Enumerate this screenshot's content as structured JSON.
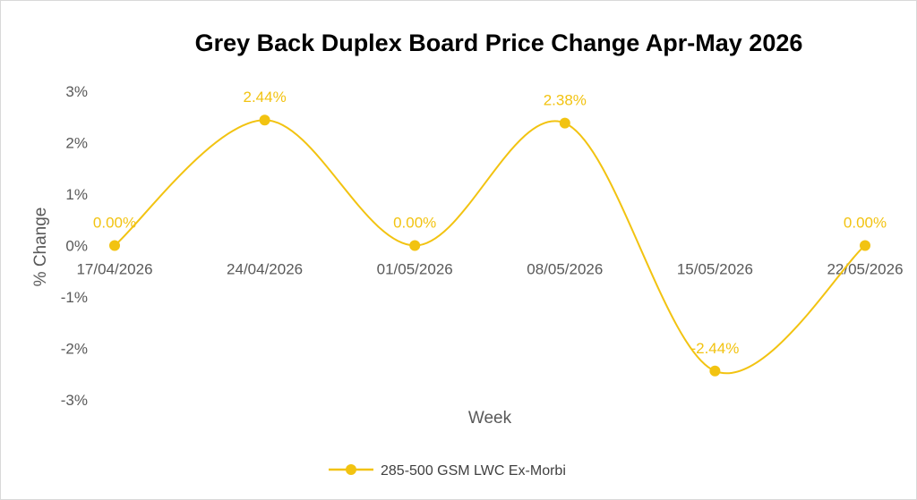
{
  "chart_data": {
    "type": "line",
    "title": "Grey Back Duplex Board Price Change Apr-May 2026",
    "xlabel": "Week",
    "ylabel": "% Change",
    "categories": [
      "17/04/2026",
      "24/04/2026",
      "01/05/2026",
      "08/05/2026",
      "15/05/2026",
      "22/05/2026"
    ],
    "series": [
      {
        "name": "285-500 GSM LWC Ex-Morbi",
        "values": [
          0.0,
          2.44,
          0.0,
          2.38,
          -2.44,
          0.0
        ],
        "labels": [
          "0.00%",
          "2.44%",
          "0.00%",
          "2.38%",
          "-2.44%",
          "0.00%"
        ],
        "color": "#F2C311"
      }
    ],
    "y_ticks": [
      "3%",
      "2%",
      "1%",
      "0%",
      "-1%",
      "-2%",
      "-3%"
    ],
    "y_tick_values": [
      3,
      2,
      1,
      0,
      -1,
      -2,
      -3
    ],
    "ylim": [
      -3,
      3
    ],
    "grid": false,
    "smooth": true,
    "legend_position": "bottom"
  }
}
